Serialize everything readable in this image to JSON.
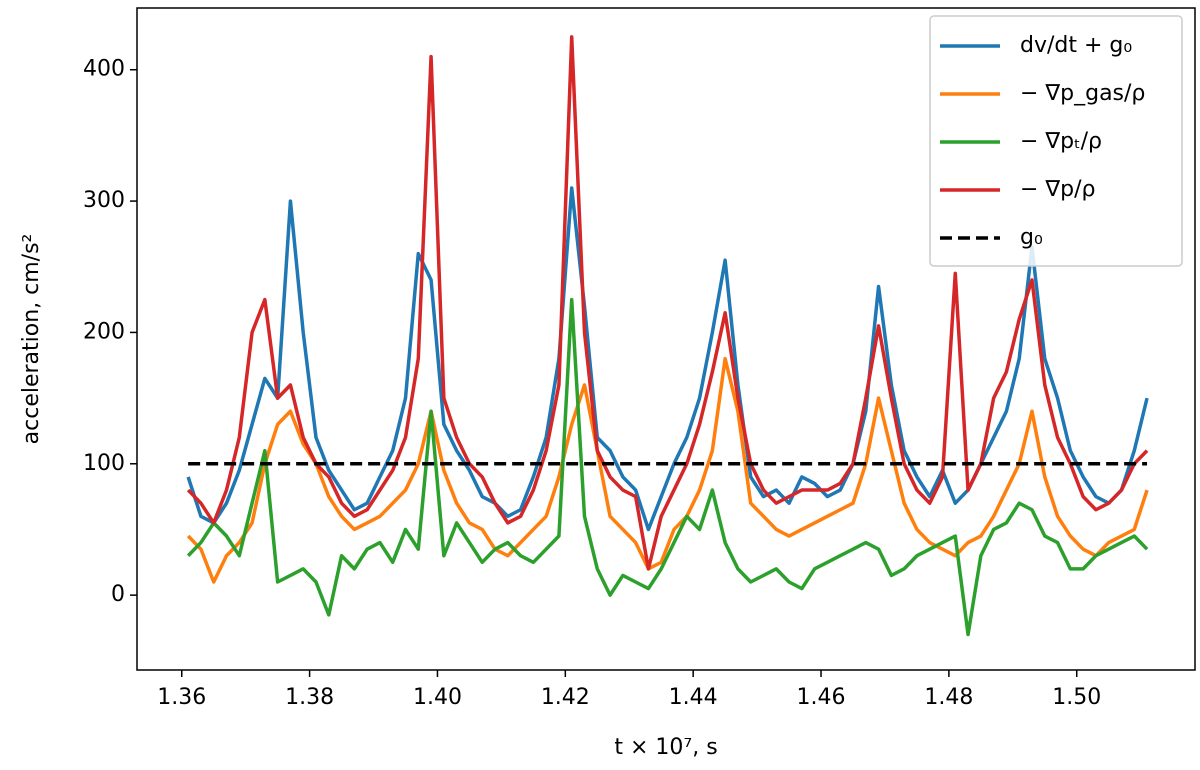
{
  "chart_data": {
    "type": "line",
    "xlabel": "t × 10⁷, s",
    "ylabel": "acceleration, cm/s²",
    "x": [
      1.361,
      1.363,
      1.365,
      1.367,
      1.369,
      1.371,
      1.373,
      1.375,
      1.377,
      1.379,
      1.381,
      1.383,
      1.385,
      1.387,
      1.389,
      1.391,
      1.393,
      1.395,
      1.397,
      1.399,
      1.401,
      1.403,
      1.405,
      1.407,
      1.409,
      1.411,
      1.413,
      1.415,
      1.417,
      1.419,
      1.421,
      1.423,
      1.425,
      1.427,
      1.429,
      1.431,
      1.433,
      1.435,
      1.437,
      1.439,
      1.441,
      1.443,
      1.445,
      1.447,
      1.449,
      1.451,
      1.453,
      1.455,
      1.457,
      1.459,
      1.461,
      1.463,
      1.465,
      1.467,
      1.469,
      1.471,
      1.473,
      1.475,
      1.477,
      1.479,
      1.481,
      1.483,
      1.485,
      1.487,
      1.489,
      1.491,
      1.493,
      1.495,
      1.497,
      1.499,
      1.501,
      1.503,
      1.505,
      1.507,
      1.509,
      1.511
    ],
    "series": [
      {
        "name": "dv/dt + g₀",
        "color": "#1f77b4",
        "values": [
          90,
          60,
          55,
          70,
          95,
          130,
          165,
          150,
          300,
          200,
          120,
          95,
          80,
          65,
          70,
          90,
          110,
          150,
          260,
          240,
          130,
          110,
          95,
          75,
          70,
          60,
          65,
          90,
          120,
          180,
          310,
          220,
          120,
          110,
          90,
          80,
          50,
          75,
          100,
          120,
          150,
          200,
          255,
          160,
          90,
          75,
          80,
          70,
          90,
          85,
          75,
          80,
          100,
          140,
          235,
          160,
          110,
          90,
          75,
          95,
          70,
          80,
          100,
          120,
          140,
          180,
          265,
          180,
          150,
          110,
          90,
          75,
          70,
          80,
          110,
          150
        ]
      },
      {
        "name": "− ∇p_gas/ρ",
        "color": "#ff7f0e",
        "values": [
          45,
          35,
          10,
          30,
          40,
          55,
          100,
          130,
          140,
          115,
          100,
          75,
          60,
          50,
          55,
          60,
          70,
          80,
          100,
          140,
          95,
          70,
          55,
          50,
          35,
          30,
          40,
          50,
          60,
          90,
          130,
          160,
          110,
          60,
          50,
          40,
          20,
          25,
          50,
          60,
          80,
          110,
          180,
          140,
          70,
          60,
          50,
          45,
          50,
          55,
          60,
          65,
          70,
          100,
          150,
          110,
          70,
          50,
          40,
          35,
          30,
          40,
          45,
          60,
          80,
          100,
          140,
          90,
          60,
          45,
          35,
          30,
          40,
          45,
          50,
          80
        ]
      },
      {
        "name": "− ∇pₜ/ρ",
        "color": "#2ca02c",
        "values": [
          30,
          40,
          55,
          45,
          30,
          70,
          110,
          10,
          15,
          20,
          10,
          -15,
          30,
          20,
          35,
          40,
          25,
          50,
          35,
          140,
          30,
          55,
          40,
          25,
          35,
          40,
          30,
          25,
          35,
          45,
          225,
          60,
          20,
          0,
          15,
          10,
          5,
          20,
          40,
          60,
          50,
          80,
          40,
          20,
          10,
          15,
          20,
          10,
          5,
          20,
          25,
          30,
          35,
          40,
          35,
          15,
          20,
          30,
          35,
          40,
          45,
          -30,
          30,
          50,
          55,
          70,
          65,
          45,
          40,
          20,
          20,
          30,
          35,
          40,
          45,
          35
        ]
      },
      {
        "name": "− ∇p/ρ",
        "color": "#d62728",
        "values": [
          80,
          70,
          55,
          80,
          120,
          200,
          225,
          150,
          160,
          120,
          100,
          90,
          70,
          60,
          65,
          80,
          95,
          120,
          180,
          410,
          150,
          120,
          100,
          90,
          70,
          55,
          60,
          80,
          110,
          160,
          425,
          200,
          110,
          90,
          80,
          75,
          20,
          60,
          80,
          100,
          130,
          170,
          215,
          150,
          100,
          80,
          70,
          75,
          80,
          80,
          80,
          85,
          100,
          150,
          205,
          150,
          100,
          80,
          70,
          90,
          245,
          80,
          100,
          150,
          170,
          210,
          240,
          160,
          120,
          100,
          75,
          65,
          70,
          80,
          100,
          110
        ]
      },
      {
        "name": "g₀",
        "color": "#000000",
        "linestyle": "dashed",
        "x": [
          1.361,
          1.511
        ],
        "values": [
          100,
          100
        ]
      }
    ],
    "xlim": [
      1.353,
      1.5185
    ],
    "ylim": [
      -57,
      447
    ],
    "xticks": [
      1.36,
      1.38,
      {
        "value": 1.4,
        "label": "1.40"
      },
      1.42,
      1.44,
      1.46,
      1.48,
      {
        "value": 1.5,
        "label": "1.50"
      }
    ],
    "yticks": [
      0,
      100,
      200,
      300,
      400
    ],
    "legend": "upper right",
    "grid": false
  }
}
